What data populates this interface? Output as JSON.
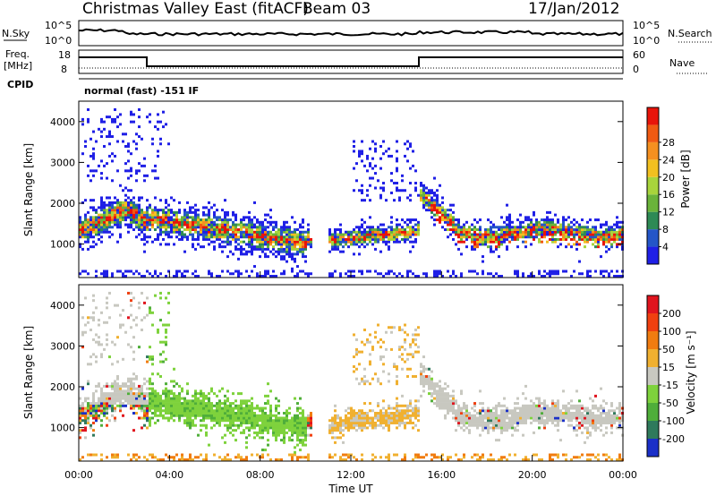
{
  "header": {
    "title": "Christmas Valley East (fitACF)",
    "beam": "Beam 03",
    "date": "17/Jan/2012"
  },
  "panels": {
    "nsky_label": "N.Sky",
    "nsky_ticks": [
      "10^5",
      "10^0"
    ],
    "nsearch_label": "N.Search",
    "freq_label": "Freq.",
    "freq_unit": "[MHz]",
    "freq_ticks": [
      "18",
      "8"
    ],
    "nave_label": "Nave",
    "nave_ticks": [
      "60",
      "0"
    ],
    "cpid_label": "CPID",
    "cpid_text": "normal (fast) -151 IF"
  },
  "chart_data": [
    {
      "type": "heatmap",
      "name": "power",
      "ylabel": "Slant Range [km]",
      "xlabel": "",
      "yticks": [
        1000,
        2000,
        3000,
        4000
      ],
      "ylim": [
        180,
        4500
      ],
      "colorbar": {
        "label": "Power [dB]",
        "ticks": [
          "4",
          "8",
          "12",
          "16",
          "20",
          "24",
          "28"
        ],
        "colors": [
          "#1f1fe6",
          "#2456c8",
          "#2e8a55",
          "#6ab33a",
          "#a8d43c",
          "#f2c020",
          "#f59020",
          "#f05a12",
          "#e8140a"
        ]
      }
    },
    {
      "type": "heatmap",
      "name": "velocity",
      "ylabel": "Slant Range [km]",
      "xlabel": "Time UT",
      "yticks": [
        1000,
        2000,
        3000,
        4000
      ],
      "ylim": [
        180,
        4500
      ],
      "xticks": [
        "00:00",
        "04:00",
        "08:00",
        "12:00",
        "16:00",
        "20:00",
        "00:00"
      ],
      "colorbar": {
        "label": "Velocity [m s⁻¹]",
        "ticks": [
          "200",
          "100",
          "50",
          "15",
          "-15",
          "-50",
          "-100",
          "-200"
        ],
        "colors": [
          "#1a2fc8",
          "#2f7a5c",
          "#4fae3a",
          "#7ed23c",
          "#c8c8c0",
          "#f0b030",
          "#f07c10",
          "#f04010",
          "#e0141e"
        ]
      }
    }
  ]
}
